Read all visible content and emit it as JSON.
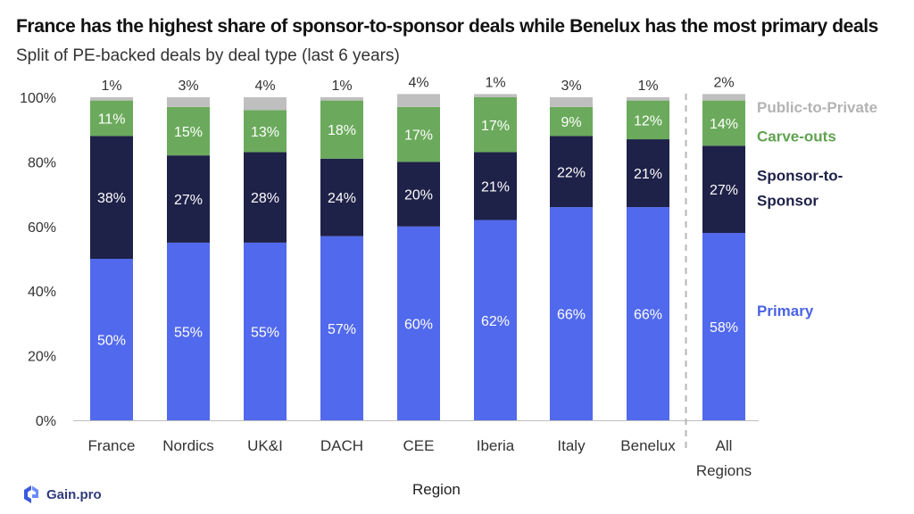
{
  "title": "France has the highest share of sponsor-to-sponsor deals while Benelux has the most primary deals",
  "subtitle": "Split of PE-backed deals by deal type (last 6 years)",
  "logo_text": "Gain.pro",
  "colors": {
    "primary": "#5169EC",
    "sponsor_to_sponsor": "#1E2148",
    "carve_outs": "#6BAA5C",
    "public_to_private": "#BFBFBF",
    "carve_outs_label": "#5FA34F",
    "public_to_private_label": "#B3B3B3",
    "primary_label": "#4A63E6",
    "sponsor_label": "#1E2148"
  },
  "chart_data": {
    "type": "bar",
    "stacked": true,
    "xlabel": "Region",
    "ylabel": "",
    "ylim": [
      0,
      100
    ],
    "yticks": [
      "0%",
      "20%",
      "40%",
      "60%",
      "80%",
      "100%"
    ],
    "ytick_values": [
      0,
      20,
      40,
      60,
      80,
      100
    ],
    "categories": [
      "France",
      "Nordics",
      "UK&I",
      "DACH",
      "CEE",
      "Iberia",
      "Italy",
      "Benelux",
      "All Regions"
    ],
    "category_lines": [
      [
        "France"
      ],
      [
        "Nordics"
      ],
      [
        "UK&I"
      ],
      [
        "DACH"
      ],
      [
        "CEE"
      ],
      [
        "Iberia"
      ],
      [
        "Italy"
      ],
      [
        "Benelux"
      ],
      [
        "All",
        "Regions"
      ]
    ],
    "separator_before_last": true,
    "series": [
      {
        "name": "Primary",
        "values": [
          50,
          55,
          55,
          57,
          60,
          62,
          66,
          66,
          58
        ]
      },
      {
        "name": "Sponsor-to-Sponsor",
        "values": [
          38,
          27,
          28,
          24,
          20,
          21,
          22,
          21,
          27
        ]
      },
      {
        "name": "Carve-outs",
        "values": [
          11,
          15,
          13,
          18,
          17,
          17,
          9,
          12,
          14
        ]
      },
      {
        "name": "Public-to-Private",
        "values": [
          1,
          3,
          4,
          1,
          4,
          1,
          3,
          1,
          2
        ]
      }
    ],
    "legend": {
      "position": "right",
      "entries": [
        {
          "lines": [
            "Public-to-Private"
          ],
          "color_key": "public_to_private_label",
          "at": 97
        },
        {
          "lines": [
            "Carve-outs"
          ],
          "color_key": "carve_outs_label",
          "at": 88
        },
        {
          "lines": [
            "Sponsor-to-",
            "Sponsor"
          ],
          "color_key": "sponsor_label",
          "at": 72
        },
        {
          "lines": [
            "Primary"
          ],
          "color_key": "primary_label",
          "at": 34
        }
      ]
    }
  }
}
